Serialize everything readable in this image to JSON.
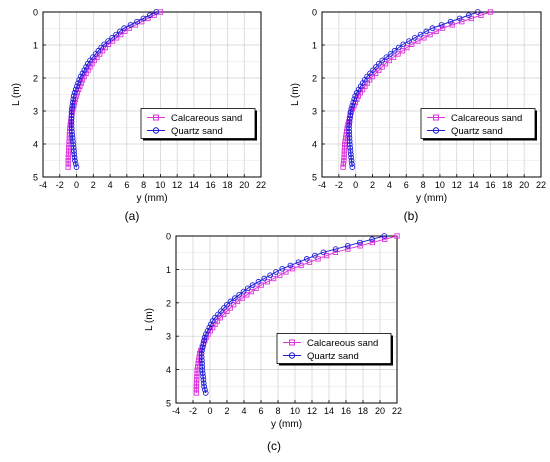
{
  "chart_data": [
    {
      "type": "scatter",
      "panel_label": "(a)",
      "xlabel": "y (mm)",
      "ylabel": "L (m)",
      "xlim": [
        -4,
        22
      ],
      "ylim": [
        0,
        5
      ],
      "y_inverted": true,
      "xticks": [
        -4,
        -2,
        0,
        2,
        4,
        6,
        8,
        10,
        12,
        14,
        16,
        18,
        20,
        22
      ],
      "yticks": [
        0,
        1,
        2,
        3,
        4,
        5
      ],
      "grid": true,
      "legend_position": "center-right",
      "series": [
        {
          "name": "Calcareous sand",
          "marker": "square",
          "color": "#dd33dd",
          "x": [
            10.0,
            6.2,
            3.7,
            2.0,
            0.8,
            0.0,
            -0.5,
            -0.8,
            -0.9,
            -1.0,
            -1.0
          ],
          "y": [
            0.0,
            0.5,
            1.0,
            1.5,
            2.0,
            2.5,
            3.0,
            3.5,
            4.0,
            4.5,
            4.7
          ]
        },
        {
          "name": "Quartz sand",
          "marker": "circle",
          "color": "#1f1fd6",
          "x": [
            9.5,
            5.6,
            3.2,
            1.5,
            0.4,
            -0.3,
            -0.6,
            -0.6,
            -0.4,
            -0.2,
            0.0
          ],
          "y": [
            0.0,
            0.5,
            1.0,
            1.5,
            2.0,
            2.5,
            3.0,
            3.5,
            4.0,
            4.5,
            4.7
          ]
        }
      ]
    },
    {
      "type": "scatter",
      "panel_label": "(b)",
      "xlabel": "y (mm)",
      "ylabel": "L (m)",
      "xlim": [
        -4,
        22
      ],
      "ylim": [
        0,
        5
      ],
      "y_inverted": true,
      "xticks": [
        -4,
        -2,
        0,
        2,
        4,
        6,
        8,
        10,
        12,
        14,
        16,
        18,
        20,
        22
      ],
      "yticks": [
        0,
        1,
        2,
        3,
        4,
        5
      ],
      "grid": true,
      "legend_position": "center-right",
      "series": [
        {
          "name": "Calcareous sand",
          "marker": "square",
          "color": "#dd33dd",
          "x": [
            16.0,
            10.2,
            6.5,
            3.8,
            1.8,
            0.4,
            -0.5,
            -1.0,
            -1.3,
            -1.4,
            -1.5
          ],
          "y": [
            0.0,
            0.5,
            1.0,
            1.5,
            2.0,
            2.5,
            3.0,
            3.5,
            4.0,
            4.5,
            4.7
          ]
        },
        {
          "name": "Quartz sand",
          "marker": "circle",
          "color": "#1f1fd6",
          "x": [
            14.5,
            9.0,
            5.5,
            3.0,
            1.2,
            0.0,
            -0.6,
            -0.8,
            -0.7,
            -0.5,
            -0.4
          ],
          "y": [
            0.0,
            0.5,
            1.0,
            1.5,
            2.0,
            2.5,
            3.0,
            3.5,
            4.0,
            4.5,
            4.7
          ]
        }
      ]
    },
    {
      "type": "scatter",
      "panel_label": "(c)",
      "xlabel": "y (mm)",
      "ylabel": "L (m)",
      "xlim": [
        -4,
        22
      ],
      "ylim": [
        0,
        5
      ],
      "y_inverted": true,
      "xticks": [
        -4,
        -2,
        0,
        2,
        4,
        6,
        8,
        10,
        12,
        14,
        16,
        18,
        20,
        22
      ],
      "yticks": [
        0,
        1,
        2,
        3,
        4,
        5
      ],
      "grid": true,
      "legend_position": "center-right",
      "series": [
        {
          "name": "Calcareous sand",
          "marker": "square",
          "color": "#dd33dd",
          "x": [
            22.0,
            14.6,
            9.5,
            5.8,
            3.0,
            1.0,
            -0.4,
            -1.2,
            -1.5,
            -1.6,
            -1.6
          ],
          "y": [
            0.0,
            0.5,
            1.0,
            1.5,
            2.0,
            2.5,
            3.0,
            3.5,
            4.0,
            4.5,
            4.7
          ]
        },
        {
          "name": "Quartz sand",
          "marker": "circle",
          "color": "#1f1fd6",
          "x": [
            20.5,
            13.2,
            8.3,
            4.8,
            2.2,
            0.4,
            -0.6,
            -1.0,
            -0.9,
            -0.7,
            -0.5
          ],
          "y": [
            0.0,
            0.5,
            1.0,
            1.5,
            2.0,
            2.5,
            3.0,
            3.5,
            4.0,
            4.5,
            4.7
          ]
        }
      ]
    }
  ]
}
